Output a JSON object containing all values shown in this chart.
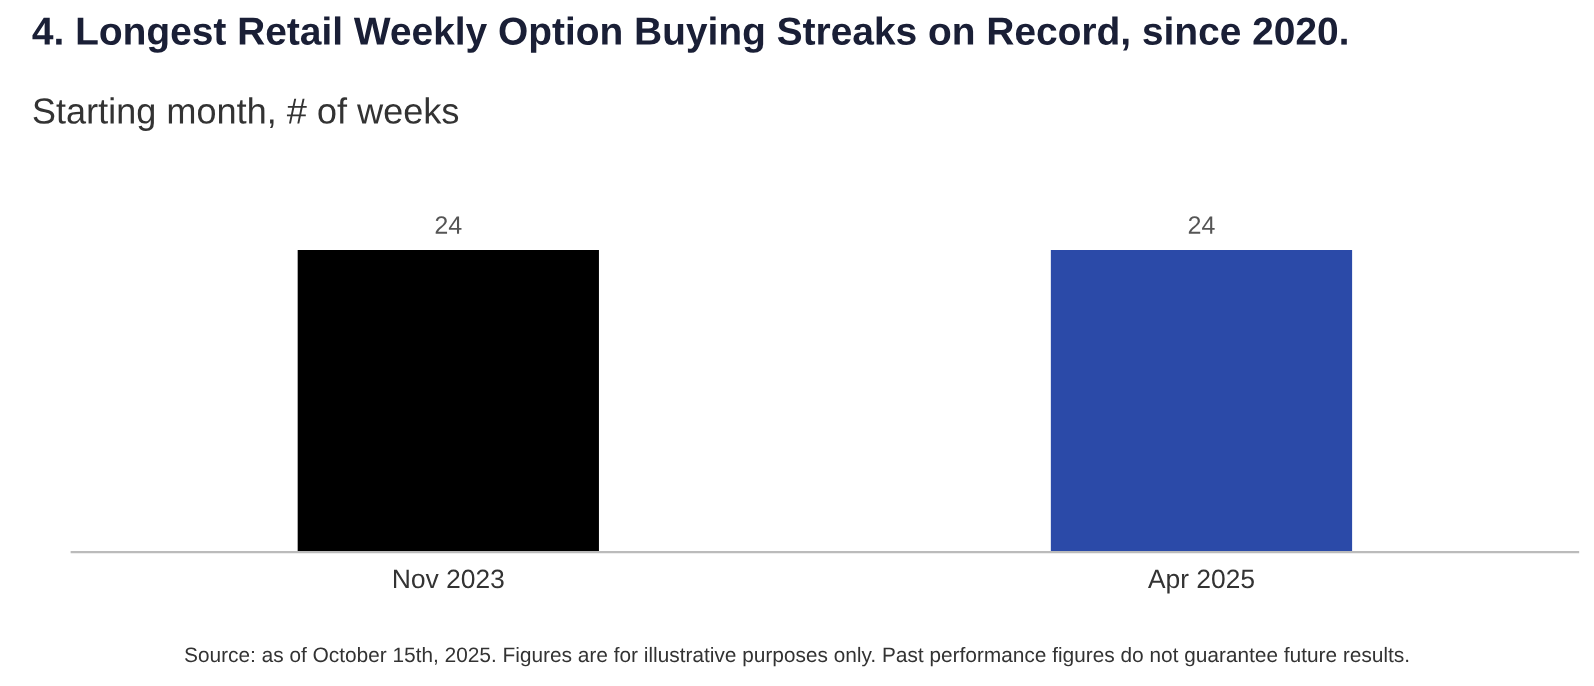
{
  "chart_data": {
    "type": "bar",
    "title": "4. Longest Retail Weekly Option Buying Streaks on Record, since 2020.",
    "subtitle": "Starting month, # of weeks",
    "categories": [
      "Nov 2023",
      "Apr 2025"
    ],
    "values": [
      24,
      24
    ],
    "colors": [
      "#000000",
      "#2b4aa8"
    ],
    "data_labels": true,
    "grid": false,
    "legend": false,
    "annotations": [
      "Source: as of October 15th, 2025. Figures are for illustrative purposes only. Past performance figures do not guarantee future results."
    ]
  }
}
